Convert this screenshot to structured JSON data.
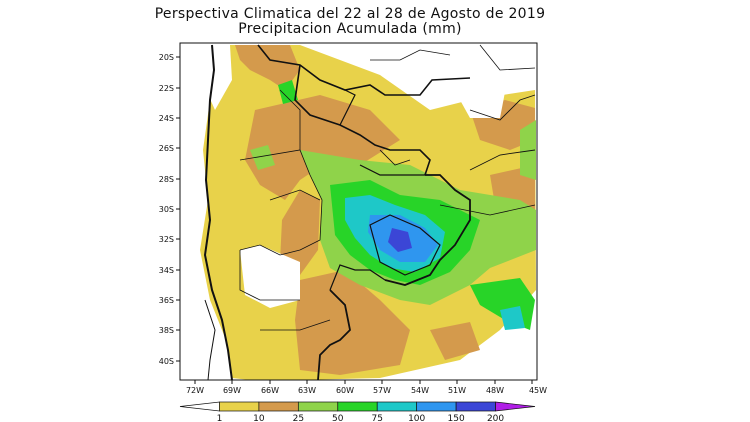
{
  "title": {
    "line1": "Perspectiva Climatica del 22 al 28 de Agosto de 2019",
    "line2": "Precipitacion Acumulada (mm)"
  },
  "map": {
    "lat_labels": [
      "20S",
      "22S",
      "24S",
      "26S",
      "28S",
      "30S",
      "32S",
      "34S",
      "36S",
      "38S",
      "40S"
    ],
    "lon_labels": [
      "72W",
      "69W",
      "66W",
      "63W",
      "60W",
      "57W",
      "54W",
      "51W",
      "48W",
      "45W"
    ]
  },
  "colorbar": {
    "thresholds": [
      "1",
      "10",
      "25",
      "50",
      "75",
      "100",
      "150",
      "200"
    ],
    "colors": [
      "#ffffff",
      "#e8d24a",
      "#d49a4c",
      "#8fd34a",
      "#28d428",
      "#1ec8c8",
      "#2f96ef",
      "#3b46d6",
      "#b01ee6"
    ]
  }
}
